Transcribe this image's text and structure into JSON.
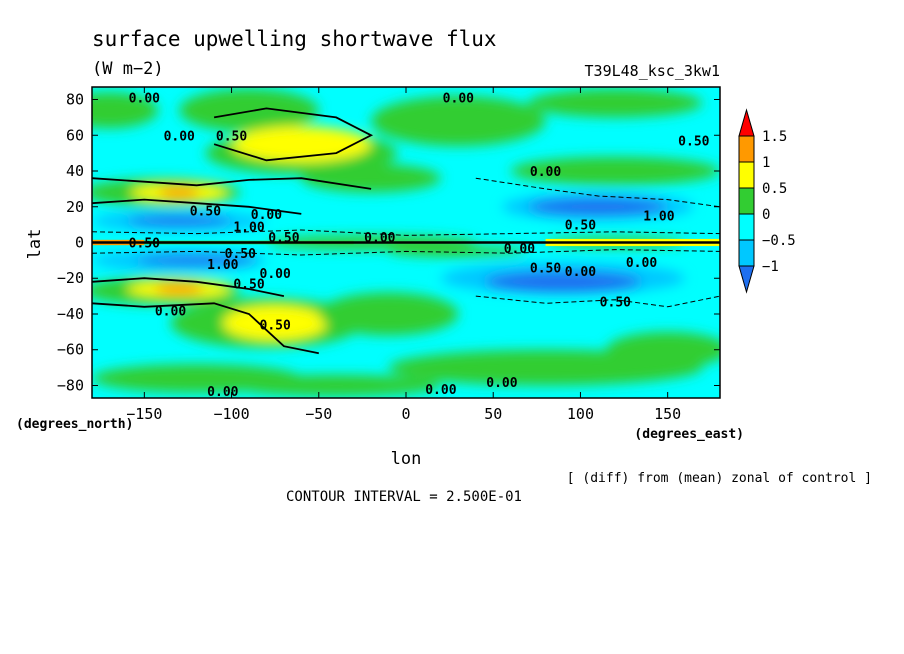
{
  "chart_data": {
    "type": "heatmap",
    "title": "surface upwelling shortwave flux",
    "units": "(W m−2)",
    "experiment": "T39L48_ksc_3kw1",
    "xlabel": "lon",
    "ylabel": "lat",
    "x_units": "(degrees_east)",
    "y_units": "(degrees_north)",
    "xlim": [
      -180,
      180
    ],
    "ylim": [
      -87,
      87
    ],
    "x_ticks": [
      -150,
      -100,
      -50,
      0,
      50,
      100,
      150
    ],
    "y_ticks": [
      -80,
      -60,
      -40,
      -20,
      0,
      20,
      40,
      60,
      80
    ],
    "x_tick_labels": [
      "−150",
      "−100",
      "−50",
      "0",
      "50",
      "100",
      "150"
    ],
    "y_tick_labels": [
      "−80",
      "−60",
      "−40",
      "−20",
      "0",
      "20",
      "40",
      "60",
      "80"
    ],
    "colorbar": {
      "levels": [
        -1,
        -0.5,
        0,
        0.5,
        1,
        1.5
      ],
      "labels": [
        "−1",
        "−0.5",
        "0",
        "0.5",
        "1",
        "1.5"
      ],
      "colors": [
        "#1e6ff0",
        "#00c8ff",
        "#00ffff",
        "#32cd32",
        "#ffff00",
        "#ff9900",
        "#ff0000"
      ]
    },
    "note": "[ (diff) from (mean) zonal of control ]",
    "contour_interval": "CONTOUR INTERVAL = 2.500E-01",
    "contour_labels": [
      {
        "text": "0.00",
        "lon": -150,
        "lat": 81
      },
      {
        "text": "0.00",
        "lon": 30,
        "lat": 81
      },
      {
        "text": "0.00",
        "lon": -130,
        "lat": 60
      },
      {
        "text": "0.50",
        "lon": -100,
        "lat": 60
      },
      {
        "text": "0.50",
        "lon": 165,
        "lat": 57
      },
      {
        "text": "0.00",
        "lon": 80,
        "lat": 40
      },
      {
        "text": "0.50",
        "lon": -115,
        "lat": 18
      },
      {
        "text": "0.00",
        "lon": -80,
        "lat": 16
      },
      {
        "text": "1.00",
        "lon": 145,
        "lat": 15
      },
      {
        "text": "1.00",
        "lon": -90,
        "lat": 9
      },
      {
        "text": "0.50",
        "lon": 100,
        "lat": 10
      },
      {
        "text": "0.50",
        "lon": -70,
        "lat": 3
      },
      {
        "text": "0.00",
        "lon": -15,
        "lat": 3
      },
      {
        "text": "0.50",
        "lon": -150,
        "lat": 0
      },
      {
        "text": "0.00",
        "lon": 65,
        "lat": -3
      },
      {
        "text": "0.50",
        "lon": -95,
        "lat": -6
      },
      {
        "text": "0.00",
        "lon": 135,
        "lat": -11
      },
      {
        "text": "1.00",
        "lon": -105,
        "lat": -12
      },
      {
        "text": "0.50",
        "lon": 80,
        "lat": -14
      },
      {
        "text": "0.00",
        "lon": 100,
        "lat": -16
      },
      {
        "text": "0.00",
        "lon": -75,
        "lat": -17
      },
      {
        "text": "0.50",
        "lon": -90,
        "lat": -23
      },
      {
        "text": "0.50",
        "lon": 120,
        "lat": -33
      },
      {
        "text": "0.00",
        "lon": -135,
        "lat": -38
      },
      {
        "text": "0.50",
        "lon": -75,
        "lat": -46
      },
      {
        "text": "0.00",
        "lon": 55,
        "lat": -78
      },
      {
        "text": "0.00",
        "lon": -105,
        "lat": -83
      },
      {
        "text": "0.00",
        "lon": 20,
        "lat": -82
      }
    ]
  }
}
